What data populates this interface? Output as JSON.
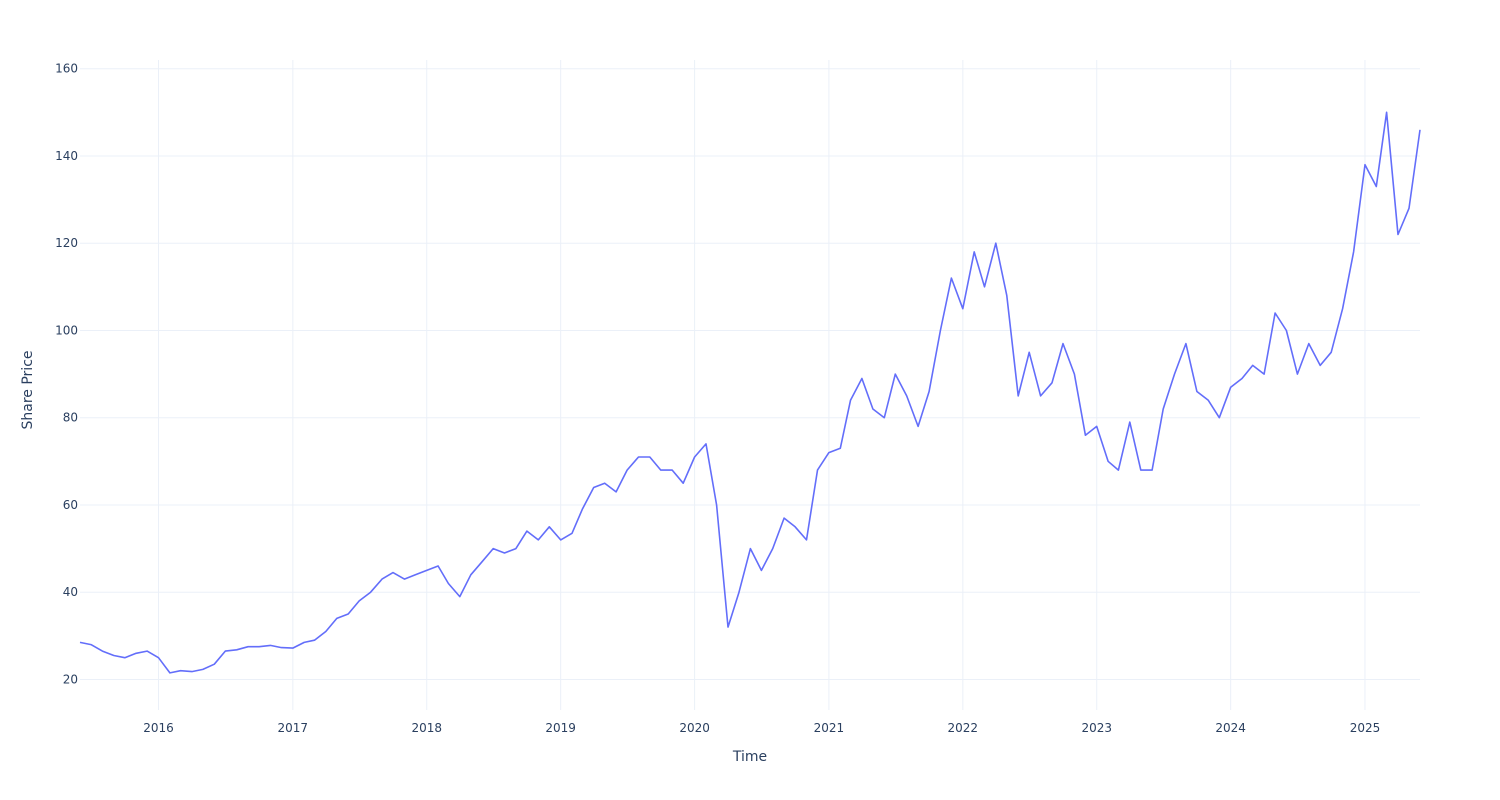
{
  "chart_data": {
    "type": "line",
    "xlabel": "Time",
    "ylabel": "Share Price",
    "xlim": [
      "2015-06-01",
      "2025-05-31"
    ],
    "ylim": [
      13,
      162
    ],
    "x_ticks": [
      "2016",
      "2017",
      "2018",
      "2019",
      "2020",
      "2021",
      "2022",
      "2023",
      "2024",
      "2025"
    ],
    "y_ticks": [
      20,
      40,
      60,
      80,
      100,
      120,
      140,
      160
    ],
    "grid": true,
    "legend": "none",
    "line_color": "#636efa",
    "series": [
      {
        "x": [
          "2015-06-01",
          "2015-07-01",
          "2015-08-01",
          "2015-09-01",
          "2015-10-01",
          "2015-11-01",
          "2015-12-01",
          "2016-01-01",
          "2016-02-01",
          "2016-03-01",
          "2016-04-01",
          "2016-05-01",
          "2016-06-01",
          "2016-07-01",
          "2016-08-01",
          "2016-09-01",
          "2016-10-01",
          "2016-11-01",
          "2016-12-01",
          "2017-01-01",
          "2017-02-01",
          "2017-03-01",
          "2017-04-01",
          "2017-05-01",
          "2017-06-01",
          "2017-07-01",
          "2017-08-01",
          "2017-09-01",
          "2017-10-01",
          "2017-11-01",
          "2017-12-01",
          "2018-01-01",
          "2018-02-01",
          "2018-03-01",
          "2018-04-01",
          "2018-05-01",
          "2018-06-01",
          "2018-07-01",
          "2018-08-01",
          "2018-09-01",
          "2018-10-01",
          "2018-11-01",
          "2018-12-01",
          "2019-01-01",
          "2019-02-01",
          "2019-03-01",
          "2019-04-01",
          "2019-05-01",
          "2019-06-01",
          "2019-07-01",
          "2019-08-01",
          "2019-09-01",
          "2019-10-01",
          "2019-11-01",
          "2019-12-01",
          "2020-01-01",
          "2020-02-01",
          "2020-03-01",
          "2020-04-01",
          "2020-05-01",
          "2020-06-01",
          "2020-07-01",
          "2020-08-01",
          "2020-09-01",
          "2020-10-01",
          "2020-11-01",
          "2020-12-01",
          "2021-01-01",
          "2021-02-01",
          "2021-03-01",
          "2021-04-01",
          "2021-05-01",
          "2021-06-01",
          "2021-07-01",
          "2021-08-01",
          "2021-09-01",
          "2021-10-01",
          "2021-11-01",
          "2021-12-01",
          "2022-01-01",
          "2022-02-01",
          "2022-03-01",
          "2022-04-01",
          "2022-05-01",
          "2022-06-01",
          "2022-07-01",
          "2022-08-01",
          "2022-09-01",
          "2022-10-01",
          "2022-11-01",
          "2022-12-01",
          "2023-01-01",
          "2023-02-01",
          "2023-03-01",
          "2023-04-01",
          "2023-05-01",
          "2023-06-01",
          "2023-07-01",
          "2023-08-01",
          "2023-09-01",
          "2023-10-01",
          "2023-11-01",
          "2023-12-01",
          "2024-01-01",
          "2024-02-01",
          "2024-03-01",
          "2024-04-01",
          "2024-05-01",
          "2024-06-01",
          "2024-07-01",
          "2024-08-01",
          "2024-09-01",
          "2024-10-01",
          "2024-11-01",
          "2024-12-01",
          "2025-01-01",
          "2025-02-01",
          "2025-03-01",
          "2025-04-01",
          "2025-05-01",
          "2025-05-31"
        ],
        "values": [
          28.5,
          28.0,
          26.5,
          25.5,
          25.0,
          26.0,
          26.5,
          25.0,
          21.5,
          22.0,
          21.8,
          22.3,
          23.5,
          26.5,
          26.8,
          27.5,
          27.5,
          27.8,
          27.3,
          27.2,
          28.5,
          29.0,
          31.0,
          34.0,
          35.0,
          38.0,
          40.0,
          43.0,
          44.5,
          43.0,
          44.0,
          45.0,
          46.0,
          42.0,
          39.0,
          44.0,
          47.0,
          50.0,
          49.0,
          50.0,
          54.0,
          52.0,
          55.0,
          52.0,
          53.5,
          59.0,
          64.0,
          65.0,
          63.0,
          68.0,
          71.0,
          71.0,
          68.0,
          68.0,
          65.0,
          71.0,
          74.0,
          60.0,
          32.0,
          40.0,
          50.0,
          45.0,
          50.0,
          57.0,
          55.0,
          52.0,
          68.0,
          72.0,
          73.0,
          84.0,
          89.0,
          82.0,
          80.0,
          90.0,
          85.0,
          78.0,
          86.0,
          100.0,
          112.0,
          105.0,
          118.0,
          110.0,
          120.0,
          108.0,
          85.0,
          95.0,
          85.0,
          88.0,
          97.0,
          90.0,
          76.0,
          78.0,
          70.0,
          68.0,
          79.0,
          68.0,
          68.0,
          82.0,
          90.0,
          97.0,
          86.0,
          84.0,
          80.0,
          87.0,
          89.0,
          92.0,
          90.0,
          104.0,
          100.0,
          90.0,
          97.0,
          92.0,
          95.0,
          105.0,
          118.0,
          138.0,
          133.0,
          150.0,
          122.0,
          128.0,
          146.0
        ]
      }
    ]
  }
}
